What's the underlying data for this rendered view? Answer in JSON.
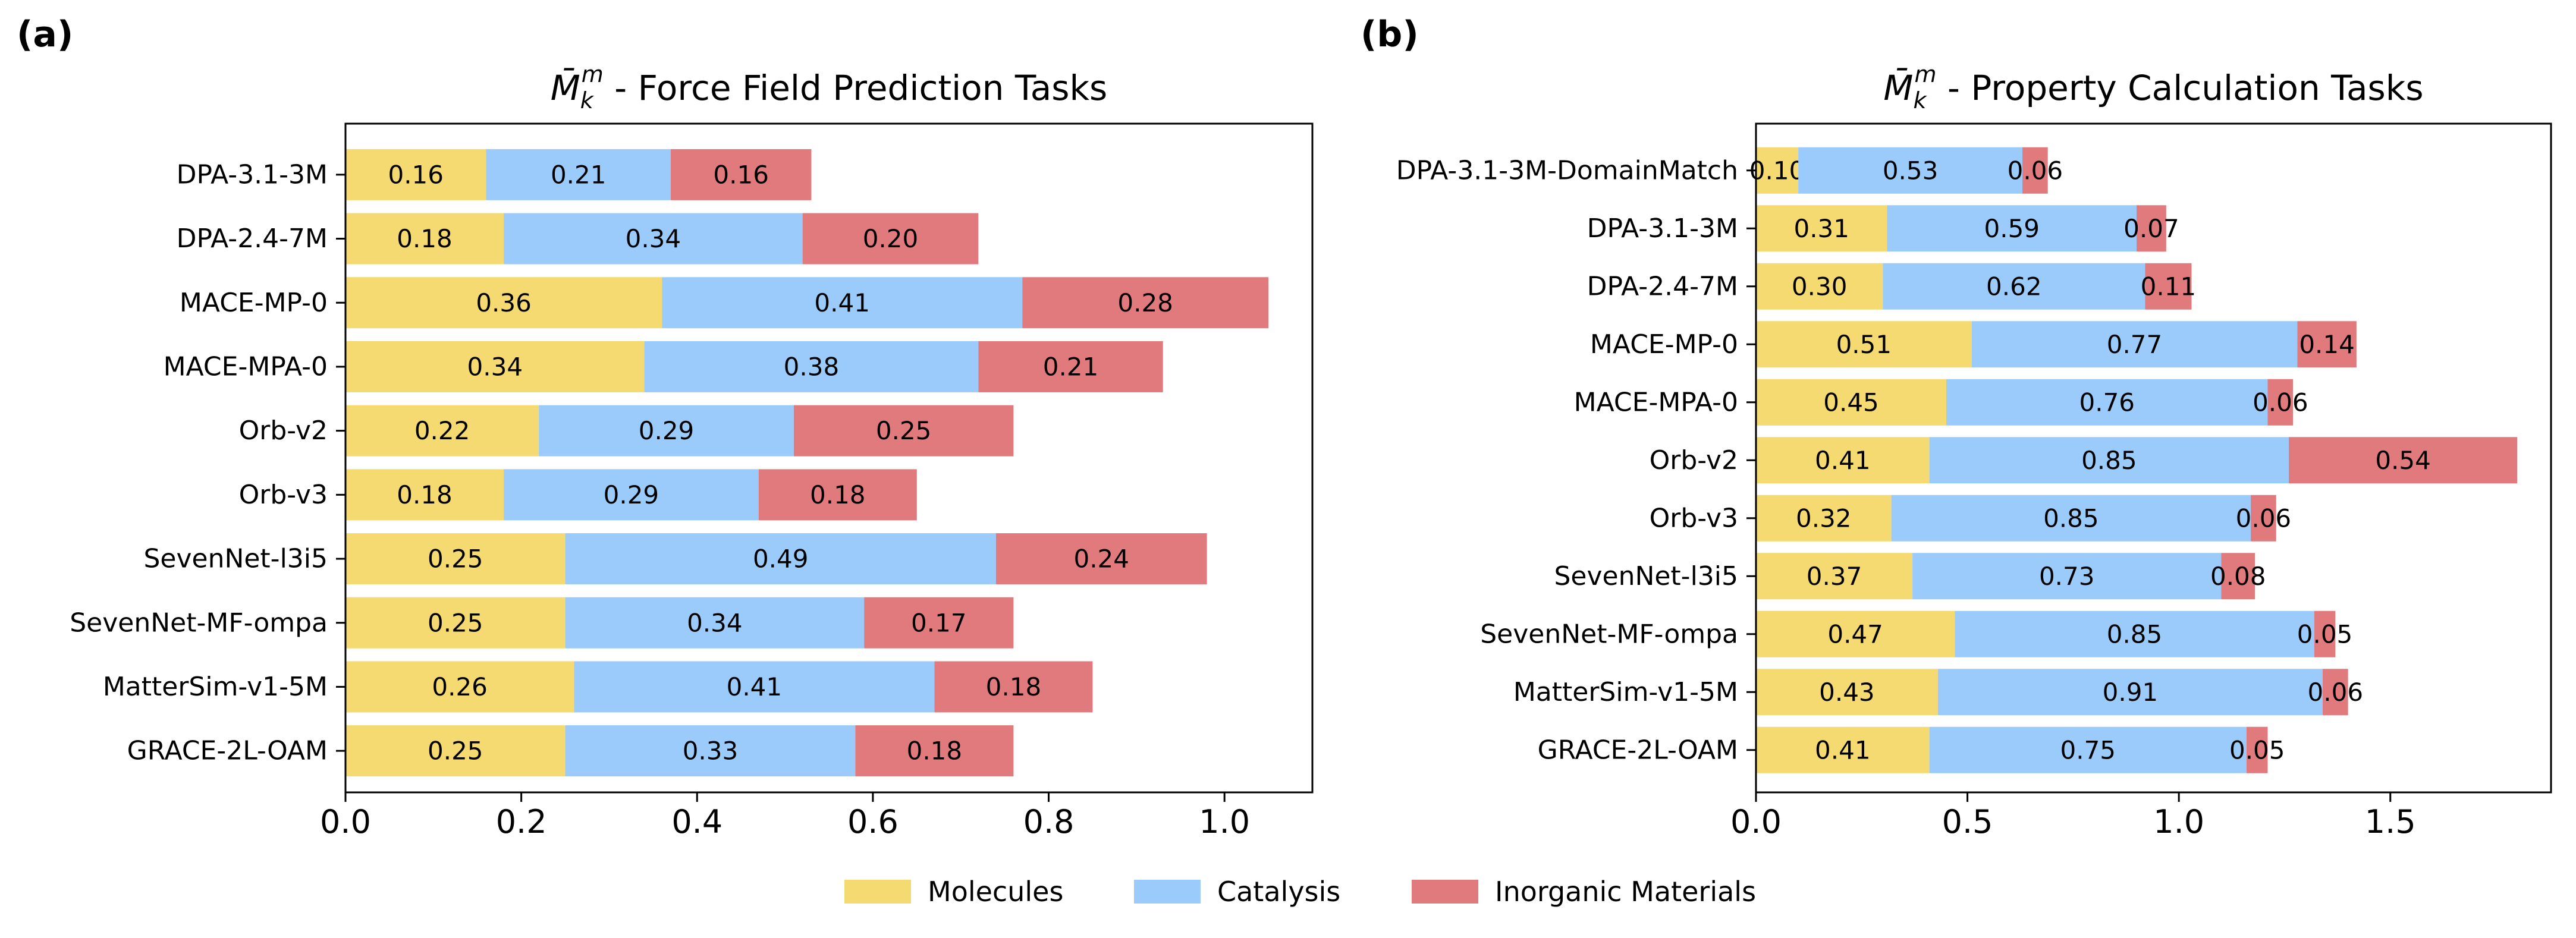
{
  "legend": [
    {
      "label": "Molecules",
      "color": "#f5da72"
    },
    {
      "label": "Catalysis",
      "color": "#9acbfb"
    },
    {
      "label": "Inorganic Materials",
      "color": "#e07a7d"
    }
  ],
  "chart_data": [
    {
      "type": "bar",
      "orientation": "horizontal",
      "stacked": true,
      "panel_label": "(a)",
      "title_symbol": "M̄",
      "title_sub": "k",
      "title_sup": "m",
      "title_text": " - Force Field Prediction Tasks",
      "xlim": [
        0,
        1.1
      ],
      "xticks": [
        0.0,
        0.2,
        0.4,
        0.6,
        0.8,
        1.0
      ],
      "xtick_labels": [
        "0.0",
        "0.2",
        "0.4",
        "0.6",
        "0.8",
        "1.0"
      ],
      "categories": [
        "DPA-3.1-3M",
        "DPA-2.4-7M",
        "MACE-MP-0",
        "MACE-MPA-0",
        "Orb-v2",
        "Orb-v3",
        "SevenNet-l3i5",
        "SevenNet-MF-ompa",
        "MatterSim-v1-5M",
        "GRACE-2L-OAM"
      ],
      "series": [
        {
          "name": "Molecules",
          "color": "#f5da72",
          "values": [
            0.16,
            0.18,
            0.36,
            0.34,
            0.22,
            0.18,
            0.25,
            0.25,
            0.26,
            0.25
          ],
          "labels": [
            "0.16",
            "0.18",
            "0.36",
            "0.34",
            "0.22",
            "0.18",
            "0.25",
            "0.25",
            "0.26",
            "0.25"
          ]
        },
        {
          "name": "Catalysis",
          "color": "#9acbfb",
          "values": [
            0.21,
            0.34,
            0.41,
            0.38,
            0.29,
            0.29,
            0.49,
            0.34,
            0.41,
            0.33
          ],
          "labels": [
            "0.21",
            "0.34",
            "0.41",
            "0.38",
            "0.29",
            "0.29",
            "0.49",
            "0.34",
            "0.41",
            "0.33"
          ]
        },
        {
          "name": "Inorganic Materials",
          "color": "#e07a7d",
          "values": [
            0.16,
            0.2,
            0.28,
            0.21,
            0.25,
            0.18,
            0.24,
            0.17,
            0.18,
            0.18
          ],
          "labels": [
            "0.16",
            "0.20",
            "0.28",
            "0.21",
            "0.25",
            "0.18",
            "0.24",
            "0.17",
            "0.18",
            "0.18"
          ]
        }
      ],
      "legend_position": "bottom-center",
      "grid": false
    },
    {
      "type": "bar",
      "orientation": "horizontal",
      "stacked": true,
      "panel_label": "(b)",
      "title_symbol": "M̄",
      "title_sub": "k",
      "title_sup": "m",
      "title_text": " - Property Calculation Tasks",
      "xlim": [
        0,
        1.88
      ],
      "xticks": [
        0.0,
        0.5,
        1.0,
        1.5
      ],
      "xtick_labels": [
        "0.0",
        "0.5",
        "1.0",
        "1.5"
      ],
      "categories": [
        "DPA-3.1-3M-DomainMatch",
        "DPA-3.1-3M",
        "DPA-2.4-7M",
        "MACE-MP-0",
        "MACE-MPA-0",
        "Orb-v2",
        "Orb-v3",
        "SevenNet-l3i5",
        "SevenNet-MF-ompa",
        "MatterSim-v1-5M",
        "GRACE-2L-OAM"
      ],
      "series": [
        {
          "name": "Molecules",
          "color": "#f5da72",
          "values": [
            0.1,
            0.31,
            0.3,
            0.51,
            0.45,
            0.41,
            0.32,
            0.37,
            0.47,
            0.43,
            0.41
          ],
          "labels": [
            "0.10",
            "0.31",
            "0.30",
            "0.51",
            "0.45",
            "0.41",
            "0.32",
            "0.37",
            "0.47",
            "0.43",
            "0.41"
          ]
        },
        {
          "name": "Catalysis",
          "color": "#9acbfb",
          "values": [
            0.53,
            0.59,
            0.62,
            0.77,
            0.76,
            0.85,
            0.85,
            0.73,
            0.85,
            0.91,
            0.75
          ],
          "labels": [
            "0.53",
            "0.59",
            "0.62",
            "0.77",
            "0.76",
            "0.85",
            "0.85",
            "0.73",
            "0.85",
            "0.91",
            "0.75"
          ]
        },
        {
          "name": "Inorganic Materials",
          "color": "#e07a7d",
          "values": [
            0.06,
            0.07,
            0.11,
            0.14,
            0.06,
            0.54,
            0.06,
            0.08,
            0.05,
            0.06,
            0.05
          ],
          "labels": [
            "0.06",
            "0.07",
            "0.11",
            "0.14",
            "0.06",
            "0.54",
            "0.06",
            "0.08",
            "0.05",
            "0.06",
            "0.05"
          ]
        }
      ],
      "legend_position": "bottom-center",
      "grid": false
    }
  ]
}
